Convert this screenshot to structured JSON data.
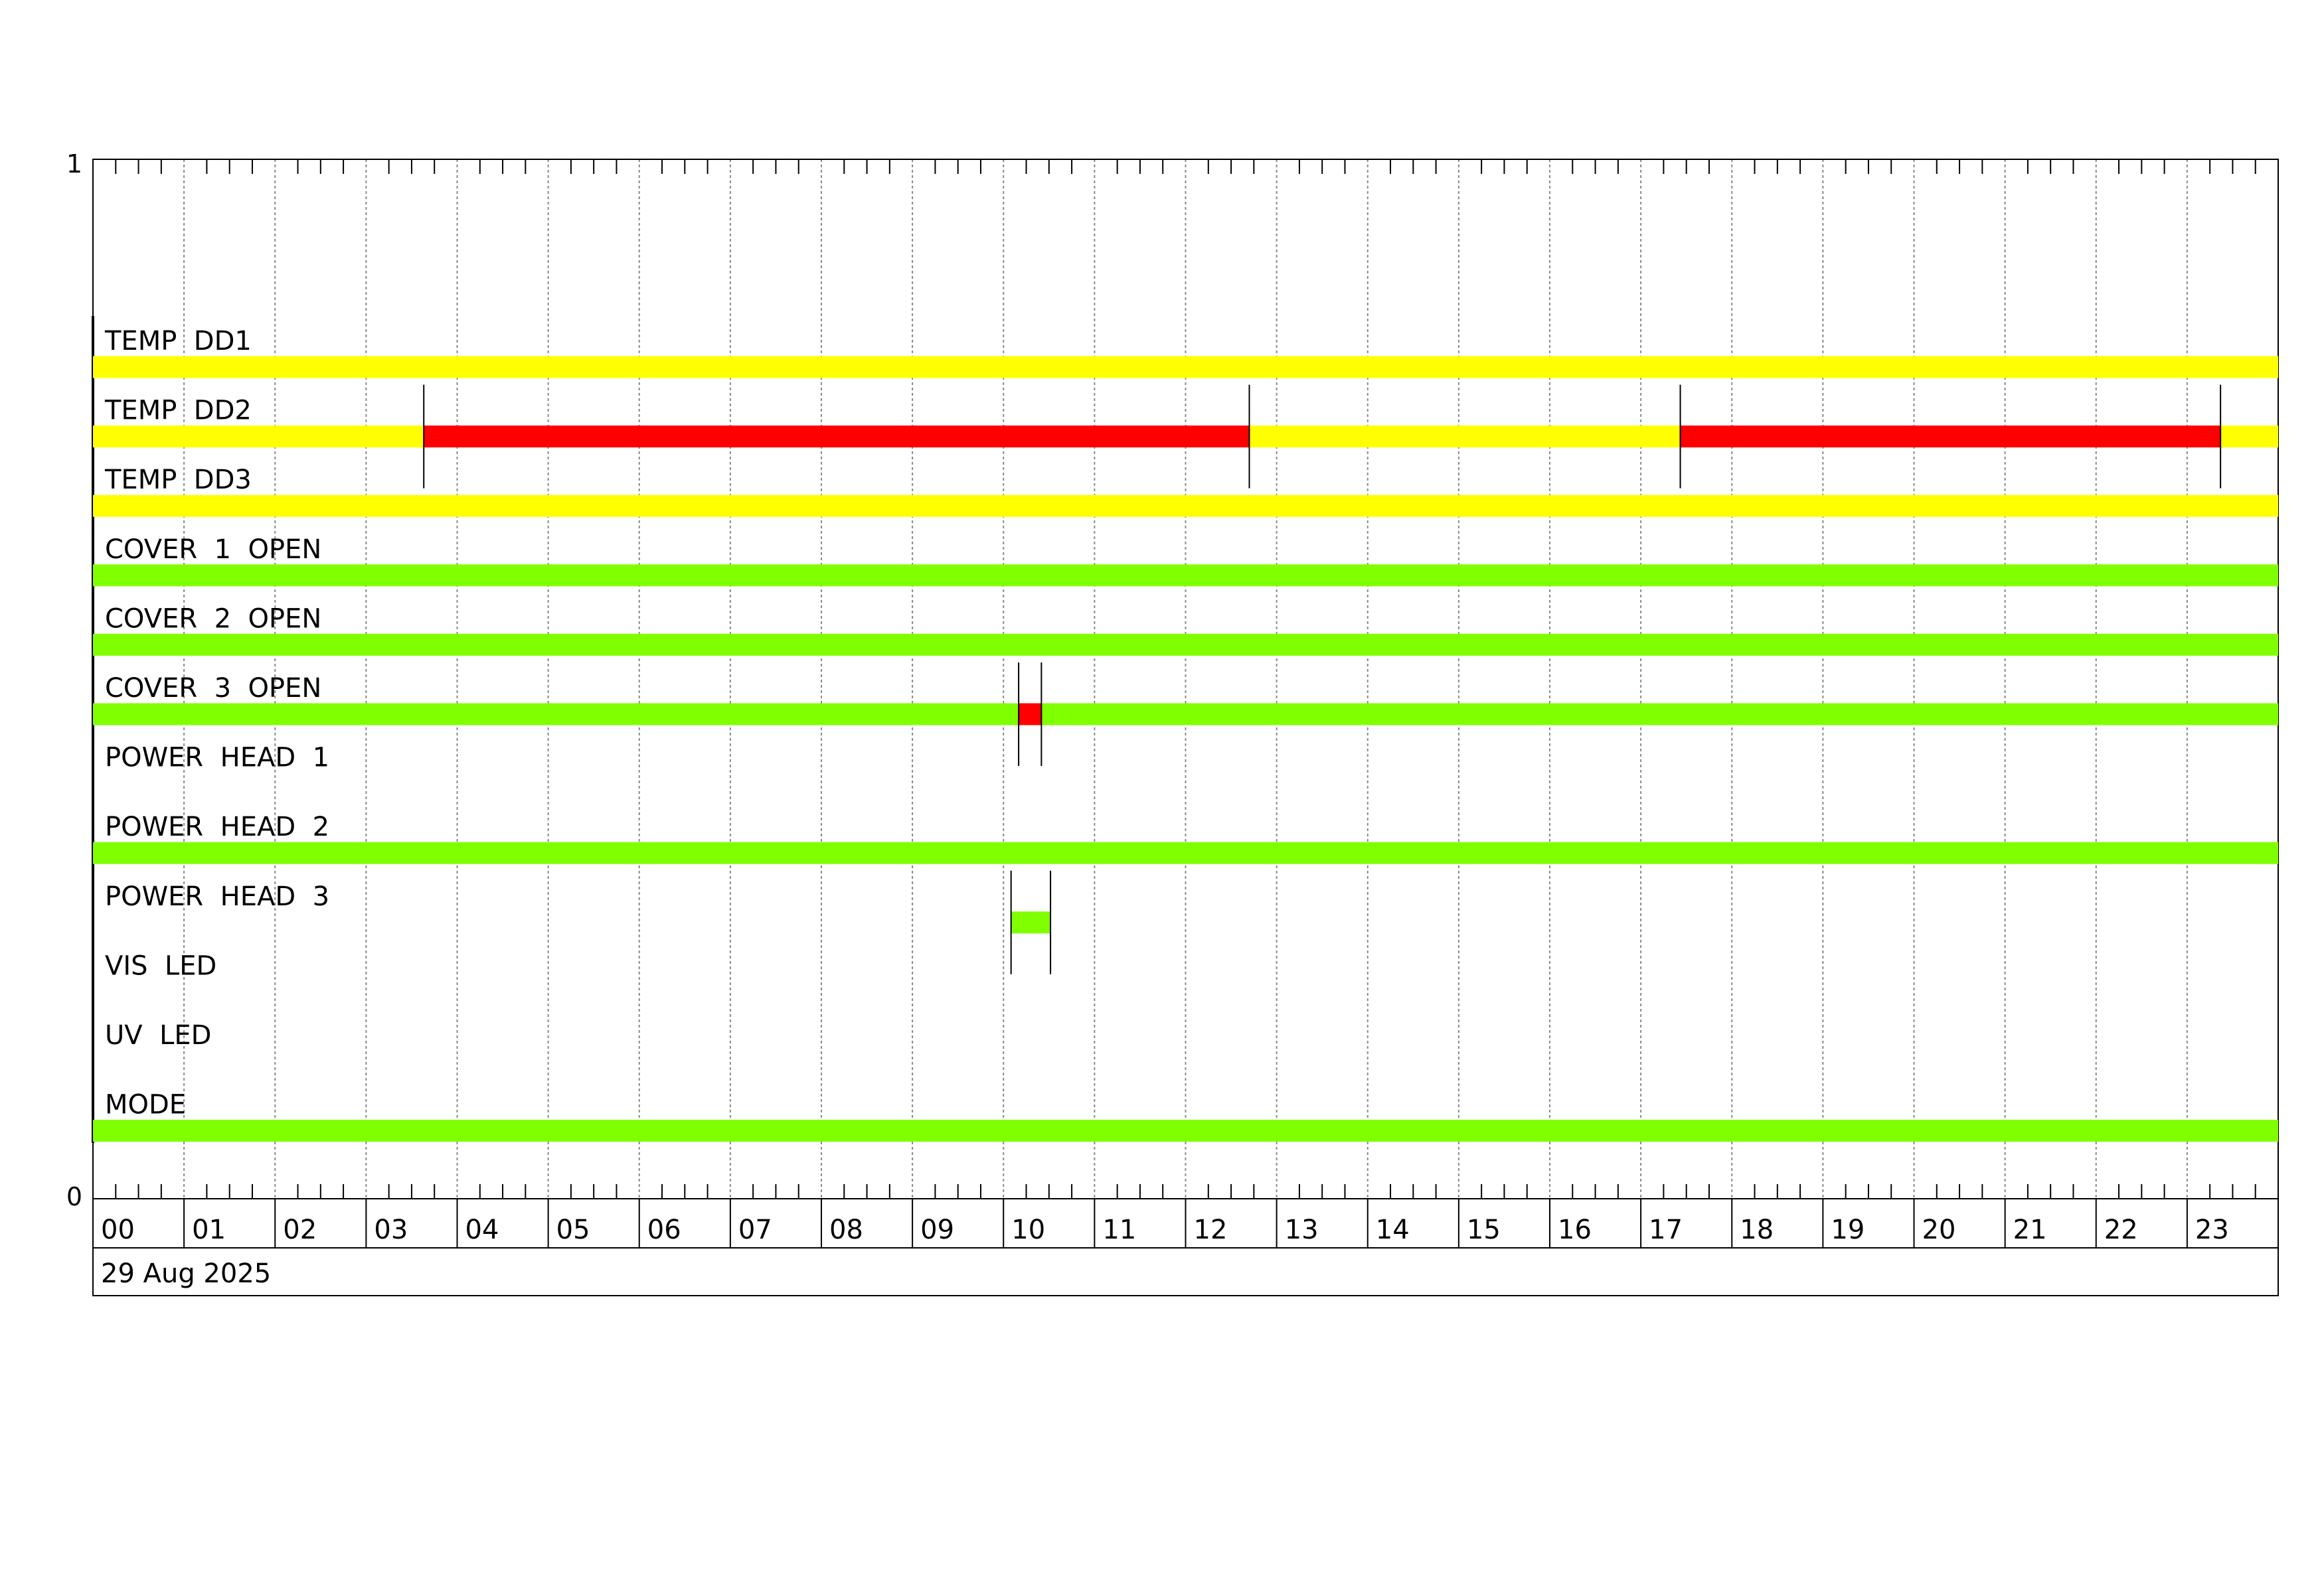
{
  "chart_data": {
    "type": "timeline",
    "title": "",
    "y_axis_ticks": [
      "1",
      "0"
    ],
    "x_tick_labels": [
      "00",
      "01",
      "02",
      "03",
      "04",
      "05",
      "06",
      "07",
      "08",
      "09",
      "10",
      "11",
      "12",
      "13",
      "14",
      "15",
      "16",
      "17",
      "18",
      "19",
      "20",
      "21",
      "22",
      "23"
    ],
    "x_range": [
      "00:00",
      "24:00"
    ],
    "date_label": "29 Aug 2025",
    "grid": true,
    "colors": {
      "yellow": "#ffff00",
      "red": "#ff0000",
      "green": "#80ff00"
    },
    "rows": [
      {
        "label": "TEMP  DD1",
        "segments": [
          {
            "start": "00:00",
            "end": "24:00",
            "color": "yellow"
          }
        ]
      },
      {
        "label": "TEMP  DD2",
        "segments": [
          {
            "start": "00:00",
            "end": "03:38",
            "color": "yellow"
          },
          {
            "start": "03:38",
            "end": "12:42",
            "color": "red"
          },
          {
            "start": "12:42",
            "end": "17:26",
            "color": "yellow"
          },
          {
            "start": "17:26",
            "end": "23:22",
            "color": "red"
          },
          {
            "start": "23:22",
            "end": "24:00",
            "color": "yellow"
          }
        ]
      },
      {
        "label": "TEMP  DD3",
        "segments": [
          {
            "start": "00:00",
            "end": "24:00",
            "color": "yellow"
          }
        ]
      },
      {
        "label": "COVER  1  OPEN",
        "segments": [
          {
            "start": "00:00",
            "end": "24:00",
            "color": "green"
          }
        ]
      },
      {
        "label": "COVER  2  OPEN",
        "segments": [
          {
            "start": "00:00",
            "end": "24:00",
            "color": "green"
          }
        ]
      },
      {
        "label": "COVER  3  OPEN",
        "segments": [
          {
            "start": "00:00",
            "end": "10:10",
            "color": "green"
          },
          {
            "start": "10:10",
            "end": "10:25",
            "color": "red"
          },
          {
            "start": "10:25",
            "end": "24:00",
            "color": "green"
          }
        ]
      },
      {
        "label": "POWER  HEAD  1",
        "segments": []
      },
      {
        "label": "POWER  HEAD  2",
        "segments": [
          {
            "start": "00:00",
            "end": "24:00",
            "color": "green"
          }
        ]
      },
      {
        "label": "POWER  HEAD  3",
        "segments": [
          {
            "start": "10:05",
            "end": "10:31",
            "color": "green"
          }
        ]
      },
      {
        "label": "VIS  LED",
        "segments": []
      },
      {
        "label": "UV  LED",
        "segments": []
      },
      {
        "label": "MODE",
        "segments": [
          {
            "start": "00:00",
            "end": "24:00",
            "color": "green"
          }
        ]
      }
    ]
  }
}
